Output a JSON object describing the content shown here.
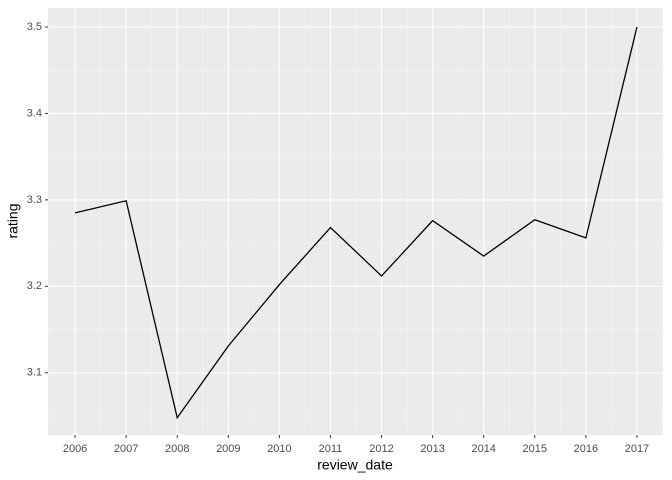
{
  "chart_data": {
    "type": "line",
    "x_label": "review_date",
    "y_label": "rating",
    "x": [
      2006,
      2007,
      2008,
      2009,
      2010,
      2011,
      2012,
      2013,
      2014,
      2015,
      2016,
      2017
    ],
    "values": [
      3.285,
      3.299,
      3.048,
      3.131,
      3.202,
      3.268,
      3.212,
      3.276,
      3.235,
      3.277,
      3.256,
      3.5
    ],
    "color": "#000000",
    "xlim": [
      2005.47,
      2017.51
    ],
    "xticks": [
      2006,
      2007,
      2008,
      2009,
      2010,
      2011,
      2012,
      2013,
      2014,
      2015,
      2016,
      2017
    ],
    "ylim": [
      3.028,
      3.522
    ],
    "yticks": [
      3.1,
      3.2,
      3.3,
      3.4,
      3.5
    ],
    "grid": true,
    "minor_grid": true
  }
}
